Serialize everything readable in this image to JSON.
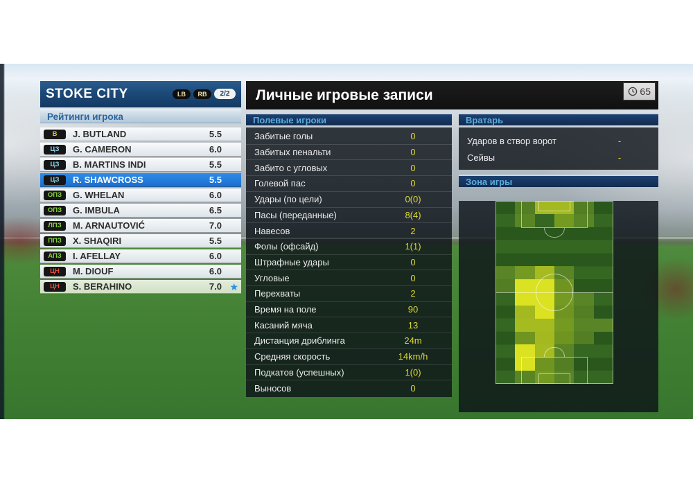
{
  "team_panel": {
    "title": "STOKE CITY",
    "btn_left": "LB",
    "btn_right": "RB",
    "page_indicator": "2/2",
    "section_title": "Рейтинги игрока",
    "players": [
      {
        "pos": "В",
        "name": "J. BUTLAND",
        "rating": "5.5",
        "selected": false,
        "starred": false,
        "highlight": false
      },
      {
        "pos": "ЦЗ",
        "name": "G. CAMERON",
        "rating": "6.0",
        "selected": false,
        "starred": false,
        "highlight": false
      },
      {
        "pos": "ЦЗ",
        "name": "B. MARTINS INDI",
        "rating": "5.5",
        "selected": false,
        "starred": false,
        "highlight": false
      },
      {
        "pos": "ЦЗ",
        "name": "R. SHAWCROSS",
        "rating": "5.5",
        "selected": true,
        "starred": false,
        "highlight": false
      },
      {
        "pos": "ОПЗ",
        "name": "G. WHELAN",
        "rating": "6.0",
        "selected": false,
        "starred": false,
        "highlight": false
      },
      {
        "pos": "ОПЗ",
        "name": "G. IMBULA",
        "rating": "6.5",
        "selected": false,
        "starred": false,
        "highlight": false
      },
      {
        "pos": "ЛПЗ",
        "name": "M. ARNAUTOVIĆ",
        "rating": "7.0",
        "selected": false,
        "starred": false,
        "highlight": false
      },
      {
        "pos": "ППЗ",
        "name": "X. SHAQIRI",
        "rating": "5.5",
        "selected": false,
        "starred": false,
        "highlight": false
      },
      {
        "pos": "АПЗ",
        "name": "I. AFELLAY",
        "rating": "6.0",
        "selected": false,
        "starred": false,
        "highlight": false
      },
      {
        "pos": "ЦН",
        "name": "M. DIOUF",
        "rating": "6.0",
        "selected": false,
        "starred": false,
        "highlight": false
      },
      {
        "pos": "ЦН",
        "name": "S. BERAHINO",
        "rating": "7.0",
        "selected": false,
        "starred": true,
        "highlight": true
      }
    ]
  },
  "records_panel": {
    "title": "Личные игровые записи",
    "match_time": "65",
    "outfield": {
      "section_title": "Полевые игроки",
      "stats": [
        {
          "label": "Забитые голы",
          "value": "0"
        },
        {
          "label": "Забитых пенальти",
          "value": "0"
        },
        {
          "label": "Забито с угловых",
          "value": "0"
        },
        {
          "label": "Голевой пас",
          "value": "0"
        },
        {
          "label": "Удары (по цели)",
          "value": "0(0)"
        },
        {
          "label": "Пасы (переданные)",
          "value": "8(4)"
        },
        {
          "label": "Навесов",
          "value": "2"
        },
        {
          "label": "Фолы (офсайд)",
          "value": "1(1)"
        },
        {
          "label": "Штрафные удары",
          "value": "0"
        },
        {
          "label": "Угловые",
          "value": "0"
        },
        {
          "label": "Перехваты",
          "value": "2"
        },
        {
          "label": "Время на поле",
          "value": "90"
        },
        {
          "label": "Касаний мяча",
          "value": "13"
        },
        {
          "label": "Дистанция дриблинга",
          "value": "24m"
        },
        {
          "label": "Средняя скорость",
          "value": "14km/h"
        },
        {
          "label": "Подкатов (успешных)",
          "value": "1(0)"
        },
        {
          "label": "Выносов",
          "value": "0"
        }
      ]
    },
    "goalkeeper": {
      "section_title": "Вратарь",
      "stats": [
        {
          "label": "Ударов в створ ворот",
          "value": "-"
        },
        {
          "label": "Сейвы",
          "value": "-"
        }
      ]
    },
    "zone": {
      "section_title": "Зона игры",
      "heatmap": {
        "rows": [
          [
            0,
            1,
            3,
            3,
            1,
            0
          ],
          [
            0,
            1,
            0,
            2,
            1,
            0
          ],
          [
            0,
            0,
            0,
            0,
            0,
            0
          ],
          [
            0,
            0,
            0,
            0,
            0,
            0
          ],
          [
            0,
            0,
            0,
            0,
            0,
            0
          ],
          [
            1,
            2,
            3,
            1,
            0,
            0
          ],
          [
            1,
            4,
            4,
            2,
            0,
            0
          ],
          [
            0,
            4,
            4,
            2,
            1,
            0
          ],
          [
            0,
            3,
            4,
            2,
            1,
            0
          ],
          [
            0,
            3,
            3,
            2,
            1,
            1
          ],
          [
            0,
            2,
            3,
            2,
            1,
            0
          ],
          [
            0,
            4,
            3,
            1,
            0,
            0
          ],
          [
            0,
            4,
            2,
            1,
            0,
            0
          ],
          [
            0,
            1,
            2,
            1,
            0,
            0
          ]
        ],
        "level_colors": [
          "transparent",
          "rgba(124,164,42,0.50)",
          "rgba(150,182,36,0.65)",
          "rgba(192,206,32,0.82)",
          "rgba(224,230,34,0.97)"
        ]
      }
    }
  },
  "colors": {
    "positions": {
      "В": "#e3c431",
      "ЦЗ": "#8fd4f0",
      "ОПЗ": "#86d435",
      "ЛПЗ": "#86d435",
      "ППЗ": "#86d435",
      "АПЗ": "#86d435",
      "ЦН": "#e3493b"
    },
    "selected_row": "#1a6fd0",
    "value_yellow": "#ddd838",
    "star_blue": "#2e8fe0"
  }
}
